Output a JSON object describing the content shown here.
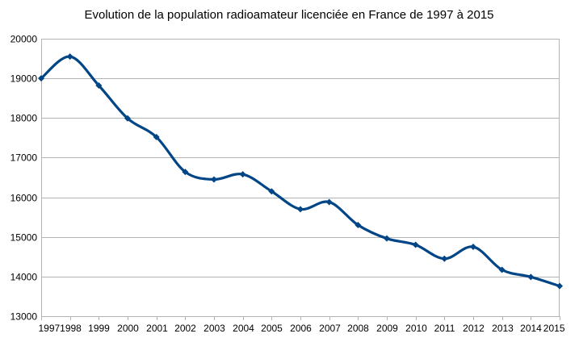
{
  "chart_data": {
    "type": "line",
    "title": "Evolution de la population radioamateur licenciée en France de 1997 à 2015",
    "xlabel": "",
    "ylabel": "",
    "x": [
      "1997",
      "1998",
      "1999",
      "2000",
      "2001",
      "2002",
      "2003",
      "2004",
      "2005",
      "2006",
      "2007",
      "2008",
      "2009",
      "2010",
      "2011",
      "2012",
      "2013",
      "2014",
      "2015"
    ],
    "series": [
      {
        "values": [
          19000,
          19550,
          18820,
          17990,
          17520,
          16640,
          16450,
          16580,
          16150,
          15700,
          15880,
          15300,
          14960,
          14800,
          14450,
          14750,
          14170,
          13990,
          13760
        ],
        "color": "#004586",
        "marker": "diamond",
        "smooth": true
      }
    ],
    "ylim": [
      13000,
      20000
    ],
    "yticks": [
      "13000",
      "14000",
      "15000",
      "16000",
      "17000",
      "18000",
      "19000",
      "20000"
    ],
    "grid": true,
    "legend": "none"
  }
}
